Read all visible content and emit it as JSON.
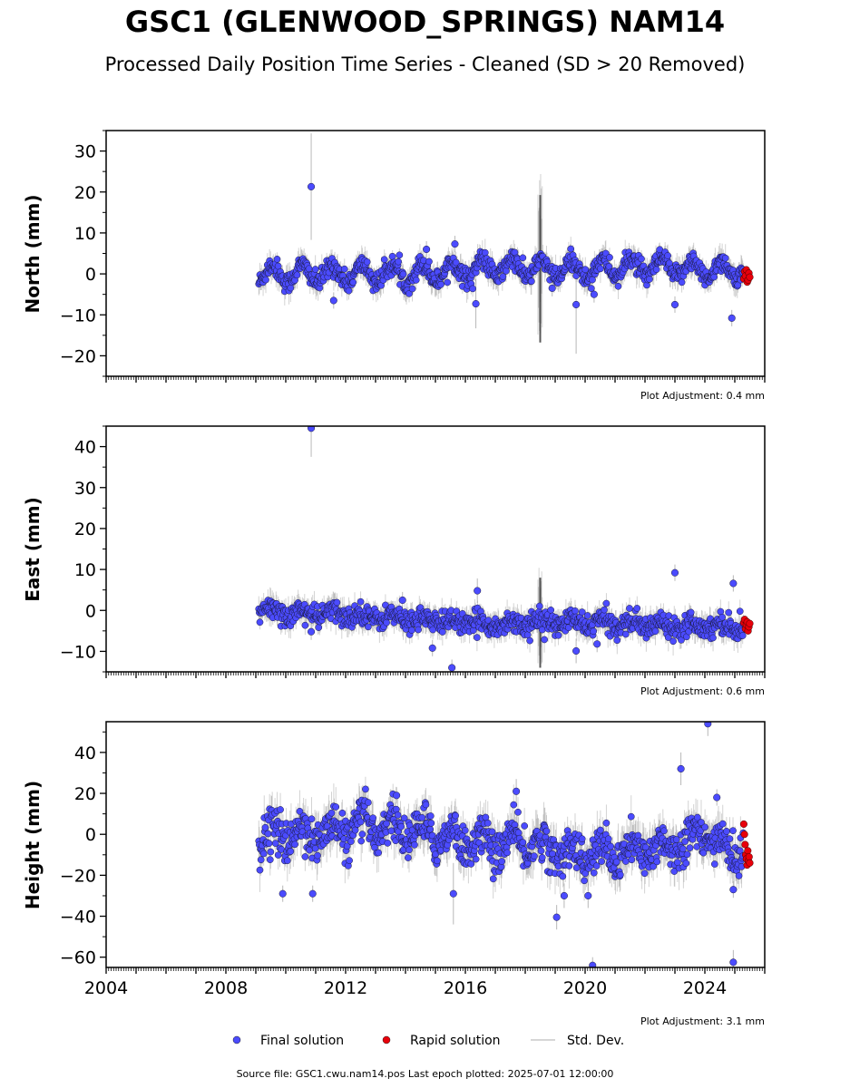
{
  "header": {
    "title": "GSC1 (GLENWOOD_SPRINGS) NAM14",
    "subtitle": "Processed Daily Position Time Series - Cleaned (SD > 20 Removed)"
  },
  "legend": {
    "final_label": "Final solution",
    "rapid_label": "Rapid solution",
    "stddev_label": "Std. Dev."
  },
  "footer": {
    "source": "Source file: GSC1.cwu.nam14.pos  Last epoch plotted: 2025-07-01 12:00:00"
  },
  "colors": {
    "final": "#4b4bff",
    "rapid": "#e8000b",
    "stddev": "#b0b0b0",
    "axis": "#000000"
  },
  "chart_data": [
    {
      "type": "scatter",
      "ylabel": "North (mm)",
      "ylim": [
        -25,
        35
      ],
      "yticks": [
        -20,
        -10,
        0,
        10,
        20,
        30
      ],
      "yminor_step": 5,
      "xlim": [
        2004,
        2026
      ],
      "adjustment": "Plot Adjustment: 0.4 mm",
      "data_start": 2009.1,
      "rapid_start": 2025.3,
      "data_end": 2025.5,
      "band": [
        [
          2009.1,
          0
        ],
        [
          2010.0,
          0
        ],
        [
          2011.0,
          0
        ],
        [
          2012.0,
          0
        ],
        [
          2013.0,
          0
        ],
        [
          2014.0,
          0
        ],
        [
          2015.0,
          0.5
        ],
        [
          2016.0,
          1
        ],
        [
          2017.0,
          1.5
        ],
        [
          2018.0,
          1.5
        ],
        [
          2019.0,
          1
        ],
        [
          2020.0,
          1
        ],
        [
          2021.0,
          1.5
        ],
        [
          2022.0,
          1.5
        ],
        [
          2023.0,
          1.5
        ],
        [
          2024.0,
          1
        ],
        [
          2025.0,
          1
        ],
        [
          2025.5,
          0
        ]
      ],
      "seasonal_amp": 2.2,
      "noise_sd": 1.2,
      "error_bar": 2.5,
      "disturbance": [
        2018.5,
        18
      ],
      "outliers": [
        {
          "x": 2010.85,
          "y": 21.3,
          "err": 13
        },
        {
          "x": 2015.65,
          "y": 7.3,
          "err": 2
        },
        {
          "x": 2016.35,
          "y": -7.3,
          "err": 6
        },
        {
          "x": 2019.7,
          "y": -7.5,
          "err": 12
        },
        {
          "x": 2020.3,
          "y": -5.0,
          "err": 2
        },
        {
          "x": 2023.0,
          "y": -7.5,
          "err": 2
        },
        {
          "x": 2024.9,
          "y": -10.8,
          "err": 2
        },
        {
          "x": 2011.6,
          "y": -6.5,
          "err": 2
        },
        {
          "x": 2014.7,
          "y": 6.0,
          "err": 2
        },
        {
          "x": 2018.9,
          "y": -3.5,
          "err": 2
        }
      ],
      "rapid_values": [
        -1.2,
        0.6,
        -0.5,
        1.0,
        -2.0,
        -1.5,
        0.2,
        -0.8
      ]
    },
    {
      "type": "scatter",
      "ylabel": "East (mm)",
      "ylim": [
        -15,
        45
      ],
      "yticks": [
        -10,
        0,
        10,
        20,
        30,
        40
      ],
      "yminor_step": 5,
      "xlim": [
        2004,
        2026
      ],
      "adjustment": "Plot Adjustment: 0.6 mm",
      "data_start": 2009.1,
      "rapid_start": 2025.3,
      "data_end": 2025.5,
      "band": [
        [
          2009.1,
          0
        ],
        [
          2010.0,
          -0.5
        ],
        [
          2011.0,
          -0.8
        ],
        [
          2012.0,
          -1
        ],
        [
          2013.0,
          -1.5
        ],
        [
          2014.0,
          -2
        ],
        [
          2015.0,
          -2.5
        ],
        [
          2016.0,
          -3
        ],
        [
          2017.0,
          -3.5
        ],
        [
          2018.0,
          -3
        ],
        [
          2019.0,
          -3
        ],
        [
          2020.0,
          -3
        ],
        [
          2021.0,
          -3
        ],
        [
          2022.0,
          -3.5
        ],
        [
          2023.0,
          -3.5
        ],
        [
          2024.0,
          -3.5
        ],
        [
          2025.0,
          -4
        ],
        [
          2025.5,
          -4
        ]
      ],
      "seasonal_amp": 0.9,
      "noise_sd": 1.3,
      "error_bar": 2.5,
      "disturbance": [
        2018.5,
        11
      ],
      "outliers": [
        {
          "x": 2010.85,
          "y": 44.5,
          "err": 7
        },
        {
          "x": 2016.4,
          "y": 4.8,
          "err": 3
        },
        {
          "x": 2015.55,
          "y": -14.0,
          "err": 2
        },
        {
          "x": 2014.9,
          "y": -9.2,
          "err": 2
        },
        {
          "x": 2019.7,
          "y": -9.9,
          "err": 3
        },
        {
          "x": 2020.4,
          "y": -8.2,
          "err": 2
        },
        {
          "x": 2023.0,
          "y": 9.2,
          "err": 2
        },
        {
          "x": 2024.95,
          "y": 6.6,
          "err": 2
        },
        {
          "x": 2010.85,
          "y": -5.2,
          "err": 2
        },
        {
          "x": 2013.9,
          "y": 2.5,
          "err": 2
        }
      ],
      "rapid_values": [
        -3.0,
        -2.2,
        -4.5,
        -3.5,
        -2.8,
        -5.0,
        -4.0,
        -3.2
      ]
    },
    {
      "type": "scatter",
      "ylabel": "Height (mm)",
      "ylim": [
        -65,
        55
      ],
      "yticks": [
        -60,
        -40,
        -20,
        0,
        20,
        40
      ],
      "yminor_step": 10,
      "xlim": [
        2004,
        2026
      ],
      "xticks": [
        2004,
        2008,
        2012,
        2016,
        2020,
        2024
      ],
      "adjustment": "Plot Adjustment: 3.1 mm",
      "data_start": 2009.1,
      "rapid_start": 2025.3,
      "data_end": 2025.5,
      "band": [
        [
          2009.1,
          -2
        ],
        [
          2010.0,
          0
        ],
        [
          2011.0,
          0
        ],
        [
          2012.0,
          2
        ],
        [
          2013.0,
          5
        ],
        [
          2014.0,
          2
        ],
        [
          2015.0,
          0
        ],
        [
          2016.0,
          -3
        ],
        [
          2017.0,
          -5
        ],
        [
          2018.0,
          -4
        ],
        [
          2019.0,
          -8
        ],
        [
          2020.0,
          -10
        ],
        [
          2021.0,
          -10
        ],
        [
          2022.0,
          -8
        ],
        [
          2023.0,
          -5
        ],
        [
          2024.0,
          0
        ],
        [
          2024.8,
          -8
        ],
        [
          2025.5,
          -8
        ]
      ],
      "seasonal_amp": 5,
      "noise_sd": 5,
      "error_bar": 8,
      "disturbance": null,
      "outliers": [
        {
          "x": 2024.1,
          "y": 54,
          "err": 6
        },
        {
          "x": 2023.2,
          "y": 32,
          "err": 8
        },
        {
          "x": 2024.4,
          "y": 18,
          "err": 4
        },
        {
          "x": 2017.7,
          "y": 21,
          "err": 6
        },
        {
          "x": 2013.7,
          "y": 19,
          "err": 4
        },
        {
          "x": 2009.9,
          "y": -29,
          "err": 4
        },
        {
          "x": 2010.9,
          "y": -29,
          "err": 4
        },
        {
          "x": 2015.6,
          "y": -29,
          "err": 15
        },
        {
          "x": 2019.05,
          "y": -40.5,
          "err": 6
        },
        {
          "x": 2019.3,
          "y": -30,
          "err": 6
        },
        {
          "x": 2020.1,
          "y": -30,
          "err": 6
        },
        {
          "x": 2020.25,
          "y": -64,
          "err": 4
        },
        {
          "x": 2024.95,
          "y": -62.5,
          "err": 6
        },
        {
          "x": 2024.95,
          "y": -27,
          "err": 4
        }
      ],
      "rapid_values": [
        5,
        0,
        -5,
        -10,
        -12,
        -15,
        -8,
        -13,
        -11,
        -14
      ]
    }
  ]
}
